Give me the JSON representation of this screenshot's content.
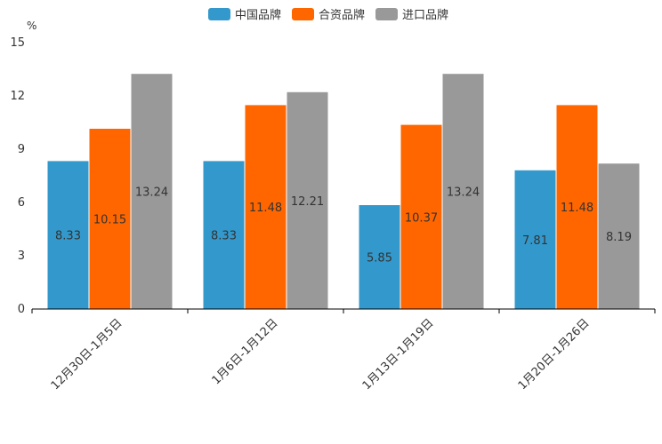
{
  "chart_data": {
    "type": "bar",
    "unit_label": "%",
    "categories": [
      "12月30日-1月5日",
      "1月6日-1月12日",
      "1月13日-1月19日",
      "1月20日-1月26日"
    ],
    "series": [
      {
        "name": "中国品牌",
        "color": "#3399cc",
        "values": [
          8.33,
          8.33,
          5.85,
          7.81
        ]
      },
      {
        "name": "合资品牌",
        "color": "#ff6600",
        "values": [
          10.15,
          11.48,
          10.37,
          11.48
        ]
      },
      {
        "name": "进口品牌",
        "color": "#999999",
        "values": [
          13.24,
          12.21,
          13.24,
          8.19
        ]
      }
    ],
    "ylim": [
      0,
      15
    ],
    "yticks": [
      0,
      3,
      6,
      9,
      12,
      15
    ],
    "legend_position": "top-center",
    "grid": false
  }
}
